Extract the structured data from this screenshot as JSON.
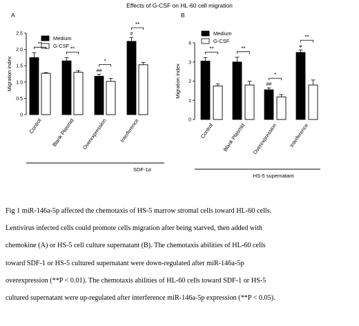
{
  "page": {
    "title": "Effects of G-CSF on HL-60 cell migration"
  },
  "chart_data": [
    {
      "type": "bar",
      "panel": "A",
      "ylabel": "Migration index",
      "yticks": [
        0,
        0.5,
        1.0,
        1.5,
        2.0,
        2.5
      ],
      "ylim": [
        0,
        2.5
      ],
      "categories": [
        "Control",
        "Blank Plasmid",
        "Overexpression",
        "Interference"
      ],
      "group_label": "SDF-1α",
      "legend": {
        "position": "top-left"
      },
      "series": [
        {
          "name": "Medium",
          "color": "#000000",
          "values": [
            1.75,
            1.65,
            1.18,
            2.25
          ],
          "errors": [
            0.15,
            0.1,
            0.06,
            0.12
          ]
        },
        {
          "name": "G-CSF",
          "color": "#ffffff",
          "values": [
            1.27,
            1.3,
            1.02,
            1.53
          ],
          "errors": [
            0.02,
            0.05,
            0.09,
            0.07
          ]
        }
      ],
      "annotations": {
        "significance": [
          "**",
          "**",
          "*",
          "**"
        ],
        "medium_marks": [
          "",
          "",
          "##",
          "#"
        ]
      }
    },
    {
      "type": "bar",
      "panel": "B",
      "ylabel": "Migration index",
      "yticks": [
        0,
        1,
        2,
        3,
        4
      ],
      "ylim": [
        0,
        4
      ],
      "categories": [
        "Control",
        "Blank Plasmid",
        "Overexpression",
        "Interference"
      ],
      "group_label": "HS-5 supernatant",
      "legend": {
        "position": "top-left"
      },
      "series": [
        {
          "name": "Medium",
          "color": "#000000",
          "values": [
            3.05,
            3.0,
            1.55,
            3.5
          ],
          "errors": [
            0.18,
            0.25,
            0.1,
            0.13
          ]
        },
        {
          "name": "G-CSF",
          "color": "#ffffff",
          "values": [
            1.75,
            1.8,
            1.18,
            1.8
          ],
          "errors": [
            0.1,
            0.2,
            0.12,
            0.26
          ]
        }
      ],
      "annotations": {
        "significance": [
          "**",
          "**",
          "*",
          "**"
        ],
        "medium_marks": [
          "",
          "",
          "##",
          "#"
        ]
      }
    }
  ],
  "caption": {
    "lines": [
      "Fig 1 miR-146a-5p affected the chemotaxis of HS-5 marrow stromal cells toward HL-60 cells.",
      "Lentivirus infected cells could promote cells migration after being starved, then added with",
      "chemokine (A) or HS-5 cell culture supernatant (B). The chemotaxis abilities of HL-60 cells",
      "toward SDF-1 or HS-5 cultured supernatant were down-regulated after miR-146a-5p",
      "overexpression (**P < 0.01). The chemotaxis abilities of HL-60 cells toward SDF-1 or HS-5",
      "cultured supernatant were up-regulated after interference miR-146a-5p expression (**P < 0.05)."
    ]
  }
}
